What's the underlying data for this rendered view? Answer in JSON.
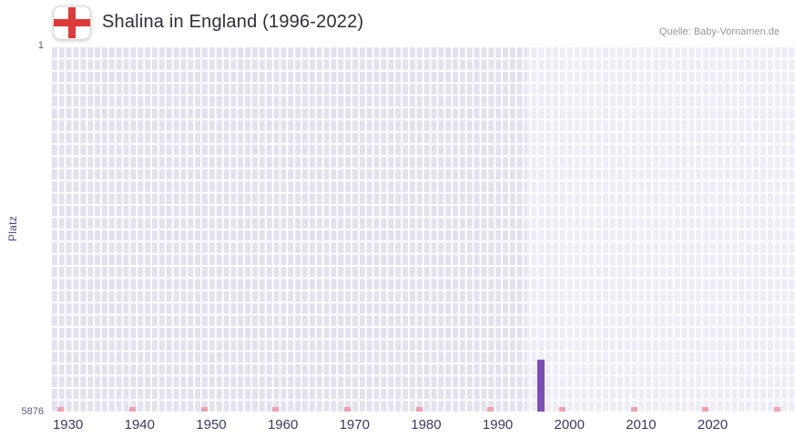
{
  "header": {
    "title": "Shalina in England (1996-2022)",
    "source": "Quelle: Baby-Vornamen.de"
  },
  "chart_data": {
    "type": "bar",
    "title": "Shalina in England (1996-2022)",
    "xlabel": "",
    "ylabel": "Platz",
    "y_axis": {
      "top_label": "1",
      "bottom_label": "5876",
      "min": 1,
      "max": 5876,
      "inverted": true
    },
    "x_axis": {
      "min": 1927.5,
      "max": 2031.5,
      "ticks": [
        "1930",
        "1940",
        "1950",
        "1960",
        "1970",
        "1980",
        "1990",
        "2000",
        "2010",
        "2020"
      ]
    },
    "series": [
      {
        "name": "Platz",
        "points": [
          {
            "year": 1996,
            "rank": 5042
          }
        ]
      }
    ],
    "data_window": {
      "start": 1994,
      "end": 2031.5
    },
    "axis_marker_years": [
      1929,
      1939,
      1949,
      1959,
      1969,
      1979,
      1989,
      1999,
      2009,
      2019,
      2029
    ],
    "colors": {
      "bar": "#7a4fb5",
      "plot_bg": "#e3e1ee",
      "plot_bg_highlight": "#edecf7",
      "grid": "#ffffff",
      "axis_marker": "#f0a1ae",
      "x_tick_label": "#3b3b5e",
      "y_tick_label": "#5f5a78"
    },
    "legend": null,
    "grid_on": true
  }
}
